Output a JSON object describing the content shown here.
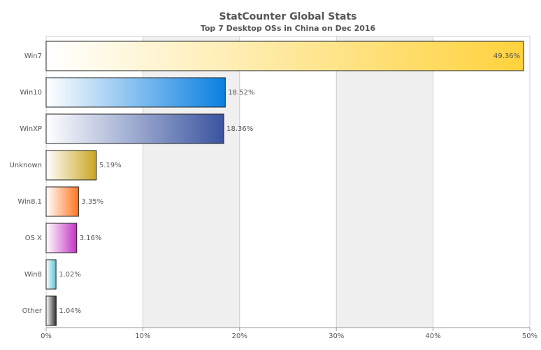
{
  "chart_data": {
    "type": "bar",
    "orientation": "horizontal",
    "title": "StatCounter Global Stats",
    "subtitle": "Top 7 Desktop OSs in China on Dec 2016",
    "categories": [
      "Win7",
      "Win10",
      "WinXP",
      "Unknown",
      "Win8.1",
      "OS X",
      "Win8",
      "Other"
    ],
    "values": [
      49.36,
      18.52,
      18.36,
      5.19,
      3.35,
      3.16,
      1.02,
      1.04
    ],
    "value_labels": [
      "49.36%",
      "18.52%",
      "18.36%",
      "5.19%",
      "3.35%",
      "3.16%",
      "1.02%",
      "1.04%"
    ],
    "colors": [
      "#ffd23c",
      "#0a7fe0",
      "#3a54a0",
      "#c9a520",
      "#ff7420",
      "#c433c4",
      "#58c4d0",
      "#2e2e2e"
    ],
    "xlim": [
      0,
      50
    ],
    "xticks": [
      {
        "value": 0,
        "label": "0%"
      },
      {
        "value": 10,
        "label": "10%"
      },
      {
        "value": 20,
        "label": "20%"
      },
      {
        "value": 30,
        "label": "30%"
      },
      {
        "value": 40,
        "label": "40%"
      },
      {
        "value": 50,
        "label": "50%"
      }
    ],
    "grid": true
  }
}
